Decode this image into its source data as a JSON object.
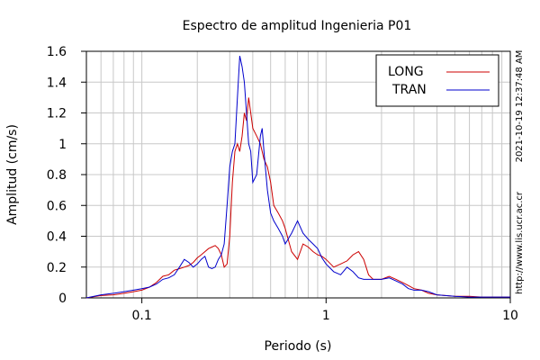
{
  "chart_data": {
    "type": "line",
    "title": "Espectro de amplitud Ingenieria P01",
    "xlabel": "Periodo (s)",
    "ylabel": "Amplitud (cm/s)",
    "xscale": "log",
    "xlim": [
      0.05,
      10
    ],
    "ylim": [
      0,
      1.6
    ],
    "x_ticks": [
      {
        "value": 0.1,
        "label": "0.1"
      },
      {
        "value": 1,
        "label": "1"
      },
      {
        "value": 10,
        "label": "10"
      }
    ],
    "y_ticks": [
      {
        "value": 0,
        "label": "0"
      },
      {
        "value": 0.2,
        "label": "0.2"
      },
      {
        "value": 0.4,
        "label": "0.4"
      },
      {
        "value": 0.6,
        "label": "0.6"
      },
      {
        "value": 0.8,
        "label": "0.8"
      },
      {
        "value": 1.0,
        "label": "1"
      },
      {
        "value": 1.2,
        "label": "1.2"
      },
      {
        "value": 1.4,
        "label": "1.4"
      },
      {
        "value": 1.6,
        "label": "1.6"
      }
    ],
    "grid": true,
    "legend_position": "top-right",
    "series": [
      {
        "name": "LONG",
        "color": "#cc0000",
        "points": [
          [
            0.05,
            0.0
          ],
          [
            0.06,
            0.015
          ],
          [
            0.07,
            0.02
          ],
          [
            0.08,
            0.03
          ],
          [
            0.09,
            0.04
          ],
          [
            0.1,
            0.05
          ],
          [
            0.11,
            0.07
          ],
          [
            0.12,
            0.1
          ],
          [
            0.13,
            0.14
          ],
          [
            0.14,
            0.15
          ],
          [
            0.15,
            0.18
          ],
          [
            0.16,
            0.19
          ],
          [
            0.17,
            0.2
          ],
          [
            0.18,
            0.21
          ],
          [
            0.19,
            0.23
          ],
          [
            0.2,
            0.26
          ],
          [
            0.21,
            0.28
          ],
          [
            0.22,
            0.3
          ],
          [
            0.23,
            0.32
          ],
          [
            0.24,
            0.33
          ],
          [
            0.25,
            0.34
          ],
          [
            0.26,
            0.32
          ],
          [
            0.27,
            0.28
          ],
          [
            0.28,
            0.2
          ],
          [
            0.29,
            0.22
          ],
          [
            0.3,
            0.4
          ],
          [
            0.31,
            0.75
          ],
          [
            0.32,
            0.95
          ],
          [
            0.33,
            1.0
          ],
          [
            0.34,
            0.95
          ],
          [
            0.35,
            1.05
          ],
          [
            0.36,
            1.2
          ],
          [
            0.37,
            1.15
          ],
          [
            0.38,
            1.3
          ],
          [
            0.39,
            1.2
          ],
          [
            0.4,
            1.1
          ],
          [
            0.42,
            1.05
          ],
          [
            0.44,
            1.0
          ],
          [
            0.46,
            0.9
          ],
          [
            0.48,
            0.85
          ],
          [
            0.5,
            0.75
          ],
          [
            0.52,
            0.6
          ],
          [
            0.55,
            0.55
          ],
          [
            0.58,
            0.5
          ],
          [
            0.6,
            0.45
          ],
          [
            0.65,
            0.3
          ],
          [
            0.7,
            0.25
          ],
          [
            0.75,
            0.35
          ],
          [
            0.8,
            0.33
          ],
          [
            0.85,
            0.3
          ],
          [
            0.9,
            0.28
          ],
          [
            0.95,
            0.27
          ],
          [
            1.0,
            0.25
          ],
          [
            1.1,
            0.2
          ],
          [
            1.2,
            0.22
          ],
          [
            1.3,
            0.24
          ],
          [
            1.4,
            0.28
          ],
          [
            1.5,
            0.3
          ],
          [
            1.6,
            0.25
          ],
          [
            1.7,
            0.15
          ],
          [
            1.8,
            0.12
          ],
          [
            2.0,
            0.12
          ],
          [
            2.2,
            0.14
          ],
          [
            2.4,
            0.12
          ],
          [
            2.6,
            0.1
          ],
          [
            2.8,
            0.08
          ],
          [
            3.0,
            0.06
          ],
          [
            3.3,
            0.05
          ],
          [
            3.6,
            0.03
          ],
          [
            4.0,
            0.02
          ],
          [
            5.0,
            0.01
          ],
          [
            6.0,
            0.01
          ],
          [
            7.0,
            0.005
          ],
          [
            8.0,
            0.005
          ],
          [
            10.0,
            0.005
          ]
        ]
      },
      {
        "name": "TRAN",
        "color": "#0000cc",
        "points": [
          [
            0.05,
            0.0
          ],
          [
            0.06,
            0.02
          ],
          [
            0.07,
            0.03
          ],
          [
            0.08,
            0.04
          ],
          [
            0.09,
            0.05
          ],
          [
            0.1,
            0.06
          ],
          [
            0.11,
            0.07
          ],
          [
            0.12,
            0.09
          ],
          [
            0.13,
            0.12
          ],
          [
            0.14,
            0.13
          ],
          [
            0.15,
            0.15
          ],
          [
            0.16,
            0.2
          ],
          [
            0.17,
            0.25
          ],
          [
            0.18,
            0.23
          ],
          [
            0.19,
            0.2
          ],
          [
            0.2,
            0.22
          ],
          [
            0.21,
            0.25
          ],
          [
            0.22,
            0.27
          ],
          [
            0.23,
            0.2
          ],
          [
            0.24,
            0.19
          ],
          [
            0.25,
            0.2
          ],
          [
            0.26,
            0.25
          ],
          [
            0.27,
            0.28
          ],
          [
            0.28,
            0.35
          ],
          [
            0.29,
            0.6
          ],
          [
            0.3,
            0.85
          ],
          [
            0.31,
            0.95
          ],
          [
            0.32,
            1.0
          ],
          [
            0.33,
            1.3
          ],
          [
            0.34,
            1.57
          ],
          [
            0.35,
            1.5
          ],
          [
            0.36,
            1.4
          ],
          [
            0.37,
            1.2
          ],
          [
            0.38,
            1.0
          ],
          [
            0.39,
            0.95
          ],
          [
            0.4,
            0.75
          ],
          [
            0.42,
            0.8
          ],
          [
            0.44,
            1.05
          ],
          [
            0.45,
            1.1
          ],
          [
            0.46,
            0.95
          ],
          [
            0.48,
            0.7
          ],
          [
            0.5,
            0.55
          ],
          [
            0.52,
            0.5
          ],
          [
            0.55,
            0.45
          ],
          [
            0.58,
            0.4
          ],
          [
            0.6,
            0.35
          ],
          [
            0.65,
            0.42
          ],
          [
            0.7,
            0.5
          ],
          [
            0.75,
            0.42
          ],
          [
            0.8,
            0.38
          ],
          [
            0.85,
            0.35
          ],
          [
            0.9,
            0.32
          ],
          [
            0.95,
            0.26
          ],
          [
            1.0,
            0.22
          ],
          [
            1.1,
            0.17
          ],
          [
            1.2,
            0.15
          ],
          [
            1.3,
            0.2
          ],
          [
            1.4,
            0.17
          ],
          [
            1.5,
            0.13
          ],
          [
            1.6,
            0.12
          ],
          [
            1.8,
            0.12
          ],
          [
            2.0,
            0.12
          ],
          [
            2.2,
            0.13
          ],
          [
            2.4,
            0.11
          ],
          [
            2.6,
            0.09
          ],
          [
            2.8,
            0.06
          ],
          [
            3.0,
            0.05
          ],
          [
            3.3,
            0.05
          ],
          [
            3.6,
            0.04
          ],
          [
            4.0,
            0.02
          ],
          [
            5.0,
            0.01
          ],
          [
            6.0,
            0.005
          ],
          [
            7.0,
            0.005
          ],
          [
            8.0,
            0.005
          ],
          [
            10.0,
            0.005
          ]
        ]
      }
    ]
  },
  "side_labels": {
    "timestamp": "2021-10-19 12:37:48 AM",
    "url": "http://www.lis.ucr.ac.cr"
  }
}
